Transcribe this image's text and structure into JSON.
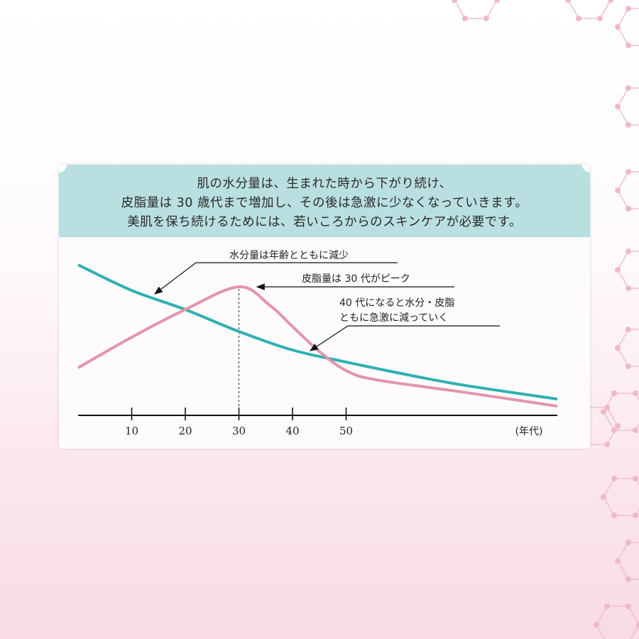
{
  "header": {
    "lines": [
      "肌の水分量は、生まれた時から下がり続け、",
      "皮脂量は 30 歳代まで増加し、その後は急激に少なくなっていきます。",
      "美肌を保ち続けるためには、若いころからのスキンケアが必要です。"
    ],
    "color": "#b9dfe1"
  },
  "chart_data": {
    "type": "line",
    "title": "",
    "xlabel": "(年代)",
    "ylabel": "",
    "xlim": [
      0,
      90
    ],
    "ylim": [
      0,
      105
    ],
    "x_ticks": [
      10,
      20,
      30,
      40,
      50
    ],
    "x_tick_labels": [
      "10",
      "20",
      "30",
      "40",
      "50"
    ],
    "grid": false,
    "series": [
      {
        "key": "moisture",
        "color": "#2fb0b3",
        "x": [
          0,
          10,
          20,
          30,
          40,
          50,
          59.6,
          71.5,
          89.4
        ],
        "y": [
          100,
          83,
          70.3,
          55.7,
          43.4,
          35.4,
          28.3,
          20.3,
          10.8
        ]
      },
      {
        "key": "sebum",
        "color": "#e395a8",
        "x": [
          0,
          10,
          20,
          30,
          35.8,
          40,
          45,
          50,
          55.6,
          71.5,
          89.4
        ],
        "y": [
          31.6,
          51.9,
          70.3,
          85.4,
          73,
          59,
          42.5,
          29.7,
          23.6,
          15.6,
          6.1
        ]
      }
    ],
    "peak_marker_x": 30,
    "annotations": [
      {
        "text": "水分量は年齢とともに減少"
      },
      {
        "text": "皮脂量は 30 代がピーク"
      },
      {
        "text": "40 代になると水分・皮脂"
      },
      {
        "text": "ともに急激に減っていく"
      }
    ]
  }
}
